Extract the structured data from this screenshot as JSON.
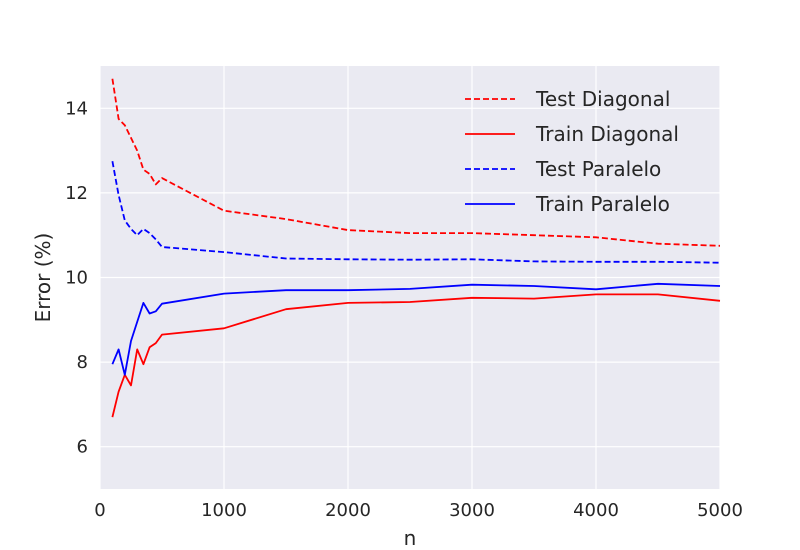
{
  "chart_data": {
    "type": "line",
    "title": "",
    "xlabel": "n",
    "ylabel": "Error (%)",
    "xlim": [
      0,
      5000
    ],
    "ylim": [
      5,
      15
    ],
    "xticks": [
      0,
      1000,
      2000,
      3000,
      4000,
      5000
    ],
    "yticks": [
      6,
      8,
      10,
      12,
      14
    ],
    "grid": true,
    "legend_position": "top-right",
    "series": [
      {
        "name": "Test Diagonal",
        "color": "#ff0000",
        "dash": "dashed",
        "x": [
          100,
          150,
          200,
          250,
          300,
          350,
          400,
          450,
          500,
          1000,
          1500,
          2000,
          2500,
          3000,
          3500,
          4000,
          4500,
          5000
        ],
        "y": [
          14.7,
          13.75,
          13.6,
          13.3,
          13.0,
          12.55,
          12.45,
          12.2,
          12.35,
          11.58,
          11.38,
          11.12,
          11.05,
          11.05,
          11.0,
          10.95,
          10.8,
          10.75
        ]
      },
      {
        "name": "Train Diagonal",
        "color": "#ff0000",
        "dash": "solid",
        "x": [
          100,
          150,
          200,
          250,
          300,
          350,
          400,
          450,
          500,
          1000,
          1500,
          2000,
          2500,
          3000,
          3500,
          4000,
          4500,
          5000
        ],
        "y": [
          6.7,
          7.3,
          7.7,
          7.45,
          8.3,
          7.95,
          8.35,
          8.45,
          8.65,
          8.8,
          9.25,
          9.4,
          9.42,
          9.52,
          9.5,
          9.6,
          9.6,
          9.45
        ]
      },
      {
        "name": "Test Paralelo",
        "color": "#0000ff",
        "dash": "dashed",
        "x": [
          100,
          150,
          200,
          250,
          300,
          350,
          400,
          450,
          500,
          1000,
          1500,
          2000,
          2500,
          3000,
          3500,
          4000,
          4500,
          5000
        ],
        "y": [
          12.75,
          11.95,
          11.35,
          11.15,
          11.0,
          11.15,
          11.05,
          10.9,
          10.72,
          10.6,
          10.45,
          10.43,
          10.42,
          10.43,
          10.38,
          10.37,
          10.37,
          10.35
        ]
      },
      {
        "name": "Train Paralelo",
        "color": "#0000ff",
        "dash": "solid",
        "x": [
          100,
          150,
          200,
          250,
          300,
          350,
          400,
          450,
          500,
          1000,
          1500,
          2000,
          2500,
          3000,
          3500,
          4000,
          4500,
          5000
        ],
        "y": [
          7.95,
          8.3,
          7.7,
          8.5,
          8.95,
          9.4,
          9.15,
          9.2,
          9.38,
          9.62,
          9.7,
          9.7,
          9.73,
          9.83,
          9.8,
          9.72,
          9.85,
          9.8
        ]
      }
    ]
  }
}
